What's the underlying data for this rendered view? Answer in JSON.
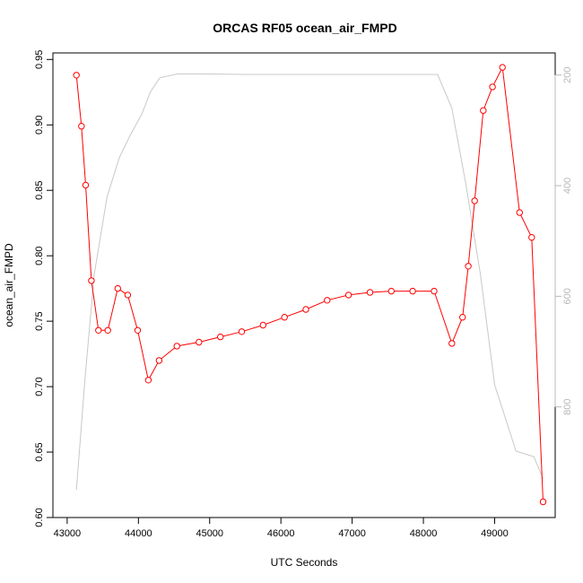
{
  "chart_data": {
    "type": "line",
    "title": "ORCAS RF05 ocean_air_FMPD",
    "xlabel": "UTC Seconds",
    "ylabel": "ocean_air_FMPD",
    "xlim": [
      42800,
      49850
    ],
    "ylim": [
      0.6,
      0.955
    ],
    "x_ticks": [
      43000,
      44000,
      45000,
      46000,
      47000,
      48000,
      49000
    ],
    "x_tick_labels": [
      "43000",
      "44000",
      "45000",
      "46000",
      "47000",
      "48000",
      "49000"
    ],
    "y_ticks": [
      0.6,
      0.65,
      0.7,
      0.75,
      0.8,
      0.85,
      0.9,
      0.95
    ],
    "y_tick_labels": [
      "0.60",
      "0.65",
      "0.70",
      "0.75",
      "0.80",
      "0.85",
      "0.90",
      "0.95"
    ],
    "y2lim": [
      1000,
      160
    ],
    "y2_ticks": [
      200,
      400,
      600,
      800
    ],
    "y2_tick_labels": [
      "200",
      "400",
      "600",
      "800"
    ],
    "series": [
      {
        "color": "#ff0000",
        "marker": "open-circle",
        "axis": "left",
        "x": [
          43130,
          43200,
          43260,
          43340,
          43440,
          43570,
          43710,
          43850,
          43990,
          44140,
          44290,
          44540,
          44850,
          45150,
          45450,
          45750,
          46050,
          46350,
          46650,
          46950,
          47250,
          47550,
          47850,
          48150,
          48400,
          48550,
          48630,
          48720,
          48840,
          48970,
          49110,
          49350,
          49520,
          49680
        ],
        "y": [
          0.938,
          0.899,
          0.854,
          0.781,
          0.743,
          0.743,
          0.775,
          0.77,
          0.743,
          0.705,
          0.72,
          0.731,
          0.734,
          0.738,
          0.742,
          0.747,
          0.753,
          0.759,
          0.766,
          0.77,
          0.772,
          0.773,
          0.773,
          0.773,
          0.733,
          0.753,
          0.792,
          0.842,
          0.911,
          0.929,
          0.944,
          0.833,
          0.814,
          0.612
        ]
      },
      {
        "color": "#c8c8c8",
        "marker": "none",
        "axis": "right",
        "x": [
          43130,
          43250,
          43380,
          43560,
          43730,
          43880,
          44050,
          44170,
          44300,
          44550,
          44850,
          45500,
          46500,
          47500,
          48200,
          48400,
          48600,
          48800,
          49000,
          49300,
          49550,
          49680
        ],
        "y": [
          950,
          750,
          560,
          420,
          350,
          310,
          270,
          230,
          205,
          198,
          198,
          199,
          199,
          199,
          199,
          260,
          400,
          560,
          760,
          880,
          890,
          930
        ]
      }
    ],
    "grid": false,
    "legend": "none"
  }
}
